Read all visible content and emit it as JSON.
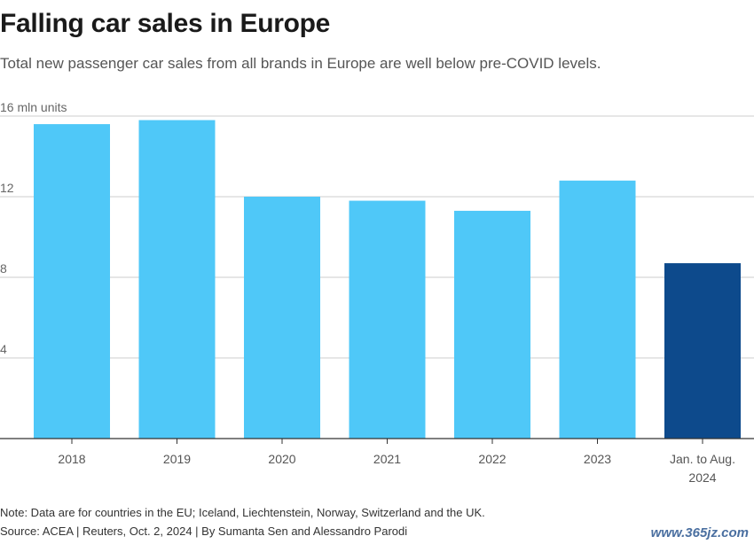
{
  "title": "Falling car sales in Europe",
  "subtitle": "Total new passenger car sales from all brands in Europe are well below pre-COVID levels.",
  "footer": {
    "note": "Note: Data are for countries in the EU; Iceland, Liechtenstein, Norway, Switzerland and the UK.",
    "source": "Source: ACEA | Reuters, Oct. 2, 2024 | By Sumanta Sen and Alessandro Parodi"
  },
  "watermark": "www.365jz.com",
  "colors": {
    "bar": "#4fc8f8",
    "highlight": "#0d4a8c",
    "grid": "#cccccc",
    "axis": "#333333"
  },
  "chart_data": {
    "type": "bar",
    "categories": [
      "2018",
      "2019",
      "2020",
      "2021",
      "2022",
      "2023",
      "Jan. to Aug. 2024"
    ],
    "values": [
      15.6,
      15.8,
      12.0,
      11.8,
      11.3,
      12.8,
      8.7
    ],
    "highlight_index": 6,
    "ylabel": "",
    "y_tick_labels": [
      "4",
      "8",
      "12",
      "16 mln units"
    ],
    "y_ticks": [
      4,
      8,
      12,
      16
    ],
    "ylim": [
      0,
      16
    ],
    "grid": true
  }
}
